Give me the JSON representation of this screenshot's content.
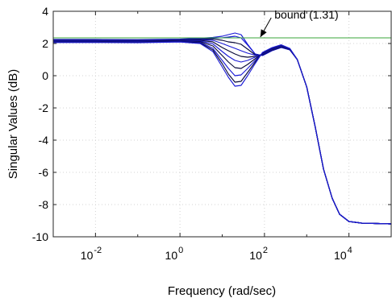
{
  "chart_data": {
    "type": "line",
    "title": "",
    "xlabel": "Frequency (rad/sec)",
    "ylabel": "Singular Values (dB)",
    "xscale": "log",
    "xlim": [
      0.001,
      100000
    ],
    "ylim": [
      -10,
      4
    ],
    "grid": true,
    "x_ticks": [
      {
        "value": 0.01,
        "base": "10",
        "exp": "-2"
      },
      {
        "value": 1,
        "base": "10",
        "exp": "0"
      },
      {
        "value": 100,
        "base": "10",
        "exp": "2"
      },
      {
        "value": 10000,
        "base": "10",
        "exp": "4"
      }
    ],
    "y_ticks": [
      {
        "value": 4,
        "label": "4"
      },
      {
        "value": 2,
        "label": "2"
      },
      {
        "value": 0,
        "label": "0"
      },
      {
        "value": -2,
        "label": "-2"
      },
      {
        "value": -4,
        "label": "-4"
      },
      {
        "value": -6,
        "label": "-6"
      },
      {
        "value": -8,
        "label": "-8"
      },
      {
        "value": -10,
        "label": "-10"
      }
    ],
    "colors": {
      "curves": "#1a1ad6",
      "curves_dark": "#0a0a3a",
      "bound": "#3aa63a",
      "arrow": "#000000"
    },
    "bound": {
      "value": 2.35,
      "label": "bound (1.31)"
    },
    "annotation": {
      "text": "bound (1.31)",
      "text_x": 1000,
      "text_y": 3.5,
      "arrow_x": 80,
      "arrow_y": 2.4
    },
    "series": [
      {
        "color_key": "curves",
        "x": [
          0.001,
          0.01,
          0.1,
          1,
          3,
          6,
          10,
          14,
          20,
          28,
          40,
          60,
          90,
          150,
          250,
          400,
          600,
          1000,
          1600,
          2500,
          4000,
          6000,
          10000,
          20000,
          100000
        ],
        "y": [
          2.25,
          2.25,
          2.24,
          2.27,
          2.33,
          2.38,
          2.45,
          2.55,
          2.65,
          2.55,
          1.95,
          1.35,
          1.25,
          1.55,
          1.75,
          1.6,
          1.0,
          -0.7,
          -3.2,
          -5.8,
          -7.6,
          -8.6,
          -9.05,
          -9.15,
          -9.2
        ]
      },
      {
        "color_key": "curves",
        "x": [
          0.001,
          0.01,
          0.1,
          1,
          3,
          6,
          10,
          14,
          20,
          28,
          40,
          60,
          90,
          150,
          250,
          400,
          600,
          1000,
          1600,
          2500,
          4000,
          6000,
          10000,
          20000,
          100000
        ],
        "y": [
          2.22,
          2.22,
          2.21,
          2.25,
          2.3,
          2.33,
          2.35,
          2.4,
          2.45,
          2.35,
          1.9,
          1.35,
          1.25,
          1.55,
          1.75,
          1.6,
          1.0,
          -0.7,
          -3.2,
          -5.8,
          -7.6,
          -8.6,
          -9.05,
          -9.15,
          -9.2
        ]
      },
      {
        "color_key": "curves_dark",
        "x": [
          0.001,
          0.01,
          0.1,
          1,
          3,
          6,
          10,
          14,
          20,
          28,
          40,
          60,
          90,
          150,
          250,
          400,
          600,
          1000,
          1600,
          2500,
          4000,
          6000,
          10000,
          20000,
          100000
        ],
        "y": [
          2.2,
          2.2,
          2.19,
          2.23,
          2.27,
          2.28,
          2.2,
          2.1,
          2.05,
          1.95,
          1.65,
          1.3,
          1.28,
          1.58,
          1.78,
          1.62,
          1.0,
          -0.7,
          -3.2,
          -5.8,
          -7.6,
          -8.6,
          -9.05,
          -9.15,
          -9.2
        ]
      },
      {
        "color_key": "curves",
        "x": [
          0.001,
          0.01,
          0.1,
          1,
          3,
          6,
          10,
          14,
          20,
          28,
          40,
          60,
          90,
          150,
          250,
          400,
          600,
          1000,
          1600,
          2500,
          4000,
          6000,
          10000,
          20000,
          100000
        ],
        "y": [
          2.18,
          2.18,
          2.17,
          2.21,
          2.24,
          2.2,
          2.0,
          1.85,
          1.7,
          1.55,
          1.4,
          1.28,
          1.3,
          1.6,
          1.8,
          1.63,
          1.0,
          -0.7,
          -3.2,
          -5.8,
          -7.6,
          -8.6,
          -9.05,
          -9.15,
          -9.2
        ]
      },
      {
        "color_key": "curves_dark",
        "x": [
          0.001,
          0.01,
          0.1,
          1,
          3,
          6,
          10,
          14,
          20,
          28,
          40,
          60,
          90,
          150,
          250,
          400,
          600,
          1000,
          1600,
          2500,
          4000,
          6000,
          10000,
          20000,
          100000
        ],
        "y": [
          2.16,
          2.16,
          2.15,
          2.19,
          2.2,
          2.1,
          1.75,
          1.55,
          1.35,
          1.2,
          1.15,
          1.2,
          1.32,
          1.62,
          1.82,
          1.64,
          1.0,
          -0.7,
          -3.2,
          -5.8,
          -7.6,
          -8.6,
          -9.05,
          -9.15,
          -9.2
        ]
      },
      {
        "color_key": "curves",
        "x": [
          0.001,
          0.01,
          0.1,
          1,
          3,
          6,
          10,
          14,
          20,
          28,
          40,
          60,
          90,
          150,
          250,
          400,
          600,
          1000,
          1600,
          2500,
          4000,
          6000,
          10000,
          20000,
          100000
        ],
        "y": [
          2.14,
          2.14,
          2.13,
          2.17,
          2.16,
          1.98,
          1.5,
          1.2,
          0.95,
          0.85,
          0.95,
          1.15,
          1.35,
          1.65,
          1.84,
          1.65,
          1.0,
          -0.7,
          -3.2,
          -5.8,
          -7.6,
          -8.6,
          -9.05,
          -9.15,
          -9.2
        ]
      },
      {
        "color_key": "curves_dark",
        "x": [
          0.001,
          0.01,
          0.1,
          1,
          3,
          6,
          10,
          14,
          20,
          28,
          40,
          60,
          90,
          150,
          250,
          400,
          600,
          1000,
          1600,
          2500,
          4000,
          6000,
          10000,
          20000,
          100000
        ],
        "y": [
          2.12,
          2.12,
          2.11,
          2.15,
          2.12,
          1.85,
          1.25,
          0.85,
          0.5,
          0.45,
          0.7,
          1.05,
          1.38,
          1.68,
          1.86,
          1.66,
          1.0,
          -0.7,
          -3.2,
          -5.8,
          -7.6,
          -8.6,
          -9.05,
          -9.15,
          -9.2
        ]
      },
      {
        "color_key": "curves",
        "x": [
          0.001,
          0.01,
          0.1,
          1,
          3,
          6,
          10,
          14,
          20,
          28,
          40,
          60,
          90,
          150,
          250,
          400,
          600,
          1000,
          1600,
          2500,
          4000,
          6000,
          10000,
          20000,
          100000
        ],
        "y": [
          2.1,
          2.1,
          2.09,
          2.13,
          2.08,
          1.7,
          0.95,
          0.45,
          0.0,
          0.05,
          0.45,
          0.95,
          1.4,
          1.7,
          1.88,
          1.67,
          1.0,
          -0.7,
          -3.2,
          -5.8,
          -7.6,
          -8.6,
          -9.05,
          -9.15,
          -9.2
        ]
      },
      {
        "color_key": "curves_dark",
        "x": [
          0.001,
          0.01,
          0.1,
          1,
          3,
          6,
          10,
          14,
          20,
          28,
          40,
          60,
          90,
          150,
          250,
          400,
          600,
          1000,
          1600,
          2500,
          4000,
          6000,
          10000,
          20000,
          100000
        ],
        "y": [
          2.08,
          2.08,
          2.07,
          2.11,
          2.04,
          1.6,
          0.75,
          0.1,
          -0.4,
          -0.35,
          0.2,
          0.85,
          1.42,
          1.72,
          1.9,
          1.68,
          1.0,
          -0.7,
          -3.2,
          -5.8,
          -7.6,
          -8.6,
          -9.05,
          -9.15,
          -9.2
        ]
      },
      {
        "color_key": "curves",
        "x": [
          0.001,
          0.01,
          0.1,
          1,
          3,
          6,
          10,
          14,
          20,
          28,
          40,
          60,
          90,
          150,
          250,
          400,
          600,
          1000,
          1600,
          2500,
          4000,
          6000,
          10000,
          20000,
          100000
        ],
        "y": [
          2.06,
          2.06,
          2.05,
          2.09,
          2.0,
          1.5,
          0.55,
          -0.1,
          -0.65,
          -0.6,
          0.0,
          0.75,
          1.45,
          1.74,
          1.92,
          1.69,
          1.0,
          -0.7,
          -3.2,
          -5.8,
          -7.6,
          -8.6,
          -9.05,
          -9.15,
          -9.2
        ]
      }
    ]
  }
}
